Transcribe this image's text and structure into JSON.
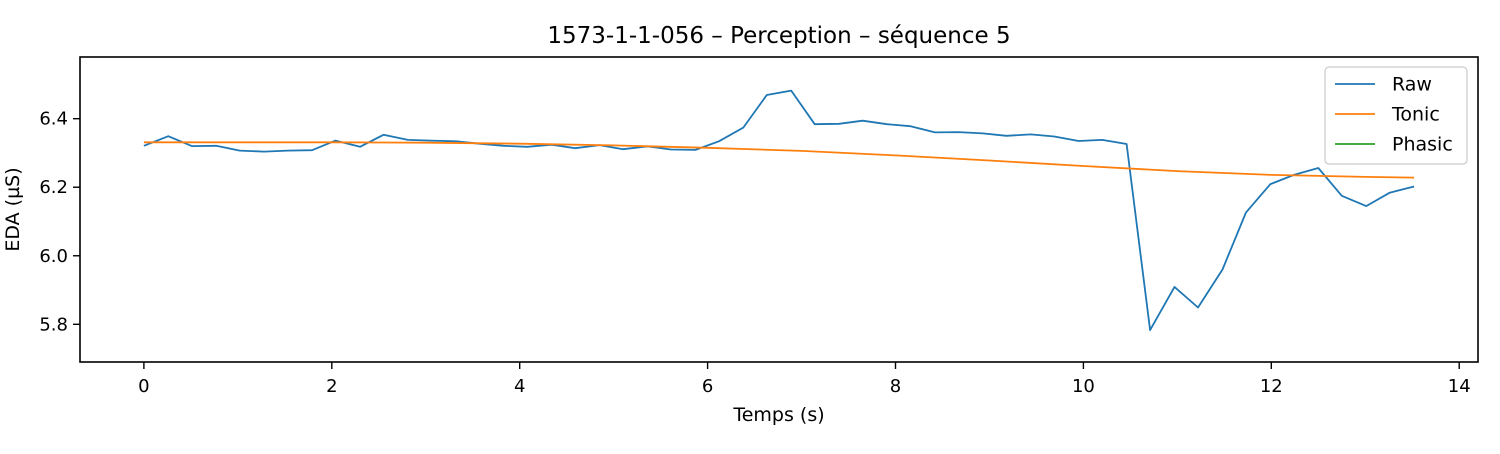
{
  "chart_data": {
    "type": "line",
    "title": "1573-1-1-056 – Perception – séquence 5",
    "xlabel": "Temps (s)",
    "ylabel": "EDA (µS)",
    "xlim": [
      -0.68,
      14.2
    ],
    "ylim": [
      5.69,
      6.58
    ],
    "x_ticks": [
      0,
      2,
      4,
      6,
      8,
      10,
      12,
      14
    ],
    "x_tick_labels": [
      "0",
      "2",
      "4",
      "6",
      "8",
      "10",
      "12",
      "14"
    ],
    "y_ticks": [
      5.8,
      6.0,
      6.2,
      6.4
    ],
    "y_tick_labels": [
      "5.8",
      "6.0",
      "6.2",
      "6.4"
    ],
    "grid": false,
    "legend_position": "upper right",
    "series": [
      {
        "name": "Raw",
        "color": "#1f77b4",
        "x": [
          0,
          0.26,
          0.51,
          0.77,
          1.02,
          1.28,
          1.53,
          1.79,
          2.04,
          2.3,
          2.55,
          2.81,
          3.06,
          3.32,
          3.57,
          3.83,
          4.08,
          4.34,
          4.59,
          4.85,
          5.1,
          5.36,
          5.61,
          5.87,
          6.12,
          6.38,
          6.63,
          6.89,
          7.14,
          7.4,
          7.65,
          7.91,
          8.16,
          8.42,
          8.67,
          8.93,
          9.18,
          9.44,
          9.69,
          9.95,
          10.2,
          10.46,
          10.71,
          10.97,
          11.22,
          11.48,
          11.73,
          11.99,
          12.24,
          12.5,
          12.75,
          13.01,
          13.26,
          13.52
        ],
        "values": [
          6.321,
          6.349,
          6.32,
          6.321,
          6.307,
          6.304,
          6.307,
          6.308,
          6.336,
          6.318,
          6.353,
          6.338,
          6.336,
          6.334,
          6.327,
          6.321,
          6.318,
          6.324,
          6.314,
          6.323,
          6.311,
          6.319,
          6.31,
          6.309,
          6.334,
          6.374,
          6.469,
          6.482,
          6.384,
          6.385,
          6.394,
          6.384,
          6.378,
          6.36,
          6.361,
          6.357,
          6.35,
          6.354,
          6.348,
          6.335,
          6.338,
          6.326,
          5.783,
          5.909,
          5.849,
          5.96,
          6.126,
          6.209,
          6.236,
          6.256,
          6.175,
          6.145,
          6.184,
          6.202
        ]
      },
      {
        "name": "Tonic",
        "color": "#ff7f0e",
        "x": [
          0,
          1,
          2,
          3,
          4,
          5,
          6,
          7,
          8,
          9,
          10,
          11,
          12,
          13,
          13.52
        ],
        "values": [
          6.331,
          6.331,
          6.331,
          6.33,
          6.327,
          6.322,
          6.315,
          6.306,
          6.293,
          6.278,
          6.262,
          6.247,
          6.236,
          6.23,
          6.228
        ]
      },
      {
        "name": "Phasic",
        "color": "#2ca02c",
        "x": [],
        "values": []
      }
    ]
  }
}
